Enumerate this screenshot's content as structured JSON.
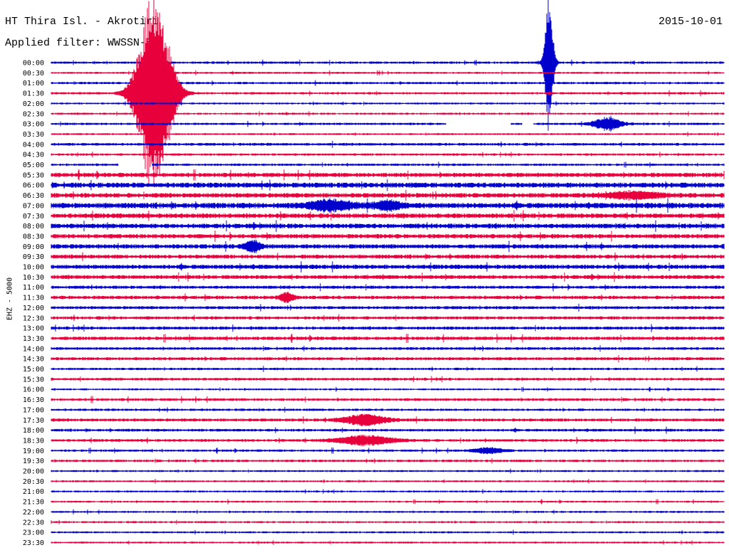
{
  "header": {
    "station": "HT Thira Isl. - Akrotiri",
    "filter": "Applied filter: WWSSN-SP",
    "date": "2015-10-01"
  },
  "chart_data": {
    "type": "line",
    "title": "HT Thira Isl. - Akrotiri",
    "subtitle": "Applied filter: WWSSN-SP",
    "ylabel": "EHZ - 5000",
    "xlabel": "",
    "tick_labels": [
      "00:00",
      "00:30",
      "01:00",
      "01:30",
      "02:00",
      "02:30",
      "03:00",
      "03:30",
      "04:00",
      "04:30",
      "05:00",
      "05:30",
      "06:00",
      "06:30",
      "07:00",
      "07:30",
      "08:00",
      "08:30",
      "09:00",
      "09:30",
      "10:00",
      "10:30",
      "11:00",
      "11:30",
      "12:00",
      "12:30",
      "13:00",
      "13:30",
      "14:00",
      "14:30",
      "15:00",
      "15:30",
      "16:00",
      "16:30",
      "17:00",
      "17:30",
      "18:00",
      "18:30",
      "19:00",
      "19:30",
      "20:00",
      "20:30",
      "21:00",
      "21:30",
      "22:00",
      "22:30",
      "23:00",
      "23:30"
    ],
    "trace_span_minutes": 30,
    "series_colors": [
      "#0000cc",
      "#e8003c"
    ],
    "noise_levels": [
      1.2,
      1.0,
      1.2,
      1.2,
      1.0,
      1.0,
      1.2,
      1.0,
      1.4,
      1.2,
      1.2,
      2.2,
      2.6,
      2.4,
      2.8,
      2.4,
      2.4,
      2.2,
      2.2,
      2.0,
      2.2,
      2.0,
      1.6,
      1.8,
      1.6,
      1.6,
      1.6,
      1.8,
      1.4,
      1.6,
      1.2,
      1.4,
      1.0,
      1.4,
      1.2,
      1.6,
      1.4,
      1.4,
      1.2,
      1.2,
      1.0,
      1.0,
      1.0,
      1.0,
      1.0,
      1.0,
      1.0,
      1.0
    ],
    "events": [
      {
        "trace": 0,
        "minute": 22.2,
        "amplitude": 90,
        "duration_minutes": 0.3
      },
      {
        "trace": 3,
        "minute": 4.6,
        "amplitude": 130,
        "duration_minutes": 1.2
      },
      {
        "trace": 6,
        "minute": 24.8,
        "amplitude": 8,
        "duration_minutes": 1.0
      },
      {
        "trace": 13,
        "minute": 26.0,
        "amplitude": 4,
        "duration_minutes": 2.0
      },
      {
        "trace": 14,
        "minute": 12.5,
        "amplitude": 7,
        "duration_minutes": 1.5
      },
      {
        "trace": 14,
        "minute": 15.0,
        "amplitude": 6,
        "duration_minutes": 1.0
      },
      {
        "trace": 18,
        "minute": 9.0,
        "amplitude": 7,
        "duration_minutes": 0.6
      },
      {
        "trace": 23,
        "minute": 10.5,
        "amplitude": 6,
        "duration_minutes": 0.5
      },
      {
        "trace": 35,
        "minute": 14.0,
        "amplitude": 7,
        "duration_minutes": 1.5
      },
      {
        "trace": 37,
        "minute": 14.0,
        "amplitude": 6,
        "duration_minutes": 2.0
      },
      {
        "trace": 38,
        "minute": 19.5,
        "amplitude": 4,
        "duration_minutes": 1.0
      }
    ],
    "gaps": [
      {
        "trace": 6,
        "start_minute": 17.6,
        "end_minute": 20.5
      },
      {
        "trace": 6,
        "start_minute": 21.0,
        "end_minute": 21.5
      },
      {
        "trace": 10,
        "start_minute": 3.0,
        "end_minute": 4.5
      }
    ]
  }
}
